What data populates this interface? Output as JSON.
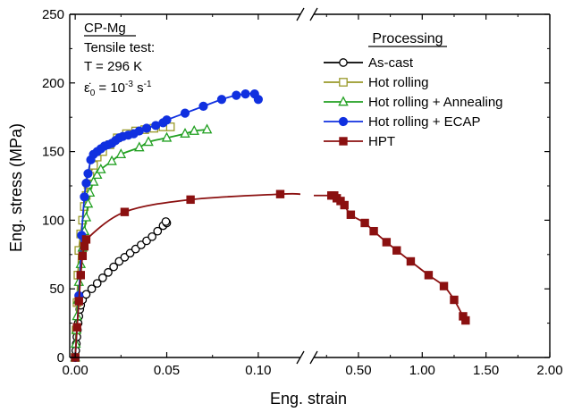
{
  "chart_data": {
    "type": "line",
    "xlabel": "Eng. strain",
    "ylabel": "Eng. stress (MPa)",
    "x_axis_broken": true,
    "x_segments": [
      {
        "xlim": [
          -0.003,
          0.123
        ],
        "ticks": [
          0.0,
          0.05,
          0.1
        ],
        "tick_labels": [
          "0.00",
          "0.05",
          "0.10"
        ]
      },
      {
        "xlim": [
          0.15,
          2.0
        ],
        "ticks": [
          0.5,
          1.0,
          1.5,
          2.0
        ],
        "tick_labels": [
          "0.50",
          "1.00",
          "1.50",
          "2.00"
        ]
      }
    ],
    "ylim": [
      0,
      250
    ],
    "y_ticks": [
      0,
      50,
      100,
      150,
      200,
      250
    ],
    "y_tick_labels": [
      "0",
      "50",
      "100",
      "150",
      "200",
      "250"
    ],
    "info_box": {
      "line1": "CP-Mg",
      "line2": "Tensile test:",
      "line3": "T = 296 K",
      "rate_symbol": "ε̇",
      "rate_sub": "0",
      "rate_eq": " = 10",
      "rate_exp1": "-3",
      "rate_unit": " s",
      "rate_exp2": "-1"
    },
    "legend_title": "Processing",
    "legend_position": "upper-right",
    "grid": false,
    "series": [
      {
        "name": "As-cast",
        "color": "#000000",
        "marker": "circle-open",
        "points": [
          [
            0,
            0
          ],
          [
            0.0003,
            5
          ],
          [
            0.0006,
            10
          ],
          [
            0.0009,
            15
          ],
          [
            0.0012,
            20
          ],
          [
            0.0016,
            25
          ],
          [
            0.002,
            30
          ],
          [
            0.0025,
            35
          ],
          [
            0.003,
            38
          ],
          [
            0.004,
            42
          ],
          [
            0.006,
            46
          ],
          [
            0.009,
            50
          ],
          [
            0.012,
            54
          ],
          [
            0.015,
            58
          ],
          [
            0.018,
            62
          ],
          [
            0.021,
            66
          ],
          [
            0.024,
            70
          ],
          [
            0.027,
            73
          ],
          [
            0.03,
            76
          ],
          [
            0.033,
            79
          ],
          [
            0.036,
            82
          ],
          [
            0.039,
            85
          ],
          [
            0.042,
            88
          ],
          [
            0.045,
            92
          ],
          [
            0.048,
            96
          ],
          [
            0.05,
            98
          ],
          [
            0.0495,
            99
          ]
        ]
      },
      {
        "name": "Hot rolling",
        "color": "#9a9a2a",
        "marker": "square-open",
        "points": [
          [
            0,
            0
          ],
          [
            0.0005,
            20
          ],
          [
            0.001,
            40
          ],
          [
            0.0015,
            60
          ],
          [
            0.002,
            78
          ],
          [
            0.003,
            90
          ],
          [
            0.004,
            100
          ],
          [
            0.005,
            110
          ],
          [
            0.006,
            118
          ],
          [
            0.007,
            126
          ],
          [
            0.008,
            132
          ],
          [
            0.01,
            140
          ],
          [
            0.012,
            146
          ],
          [
            0.015,
            150
          ],
          [
            0.019,
            155
          ],
          [
            0.023,
            160
          ],
          [
            0.028,
            163
          ],
          [
            0.033,
            165
          ],
          [
            0.038,
            166
          ],
          [
            0.043,
            167
          ],
          [
            0.048,
            168
          ],
          [
            0.052,
            168
          ]
        ]
      },
      {
        "name": "Hot rolling + Annealing",
        "color": "#22a022",
        "marker": "triangle-open",
        "points": [
          [
            0,
            0
          ],
          [
            0.0003,
            10
          ],
          [
            0.0006,
            20
          ],
          [
            0.001,
            30
          ],
          [
            0.0015,
            42
          ],
          [
            0.002,
            55
          ],
          [
            0.003,
            68
          ],
          [
            0.004,
            80
          ],
          [
            0.005,
            92
          ],
          [
            0.006,
            102
          ],
          [
            0.007,
            112
          ],
          [
            0.008,
            120
          ],
          [
            0.01,
            128
          ],
          [
            0.012,
            133
          ],
          [
            0.014,
            137
          ],
          [
            0.02,
            143
          ],
          [
            0.025,
            148
          ],
          [
            0.035,
            153
          ],
          [
            0.04,
            157
          ],
          [
            0.05,
            160
          ],
          [
            0.06,
            163
          ],
          [
            0.065,
            165
          ],
          [
            0.072,
            166
          ]
        ]
      },
      {
        "name": "Hot rolling + ECAP",
        "color": "#1030e0",
        "marker": "circle-filled",
        "points": [
          [
            0,
            0
          ],
          [
            0.002,
            45
          ],
          [
            0.0035,
            89
          ],
          [
            0.005,
            117
          ],
          [
            0.006,
            127
          ],
          [
            0.007,
            134
          ],
          [
            0.0085,
            144
          ],
          [
            0.01,
            148
          ],
          [
            0.012,
            150
          ],
          [
            0.014,
            152
          ],
          [
            0.016,
            154
          ],
          [
            0.018,
            155
          ],
          [
            0.02,
            156
          ],
          [
            0.022,
            158
          ],
          [
            0.024,
            160
          ],
          [
            0.026,
            161
          ],
          [
            0.029,
            162
          ],
          [
            0.032,
            163
          ],
          [
            0.035,
            165
          ],
          [
            0.039,
            167
          ],
          [
            0.044,
            169
          ],
          [
            0.048,
            171
          ],
          [
            0.05,
            173
          ],
          [
            0.06,
            178
          ],
          [
            0.07,
            183
          ],
          [
            0.08,
            188
          ],
          [
            0.088,
            191
          ],
          [
            0.093,
            192
          ],
          [
            0.098,
            192
          ],
          [
            0.1,
            188
          ]
        ]
      },
      {
        "name": "HPT",
        "color": "#8b1010",
        "marker": "square-filled",
        "points": [
          [
            0,
            0
          ],
          [
            0.001,
            22
          ],
          [
            0.002,
            41
          ],
          [
            0.003,
            60
          ],
          [
            0.004,
            74
          ],
          [
            0.005,
            81
          ],
          [
            0.006,
            86
          ],
          [
            0.027,
            106
          ],
          [
            0.063,
            115
          ],
          [
            0.112,
            119
          ],
          [
            0.288,
            118
          ],
          [
            0.31,
            118
          ],
          [
            0.33,
            116
          ],
          [
            0.36,
            114
          ],
          [
            0.39,
            111
          ],
          [
            0.44,
            104
          ],
          [
            0.55,
            98
          ],
          [
            0.62,
            92
          ],
          [
            0.72,
            84
          ],
          [
            0.8,
            78
          ],
          [
            0.91,
            70
          ],
          [
            1.05,
            60
          ],
          [
            1.17,
            52
          ],
          [
            1.25,
            42
          ],
          [
            1.32,
            30
          ],
          [
            1.34,
            27
          ]
        ]
      }
    ]
  }
}
